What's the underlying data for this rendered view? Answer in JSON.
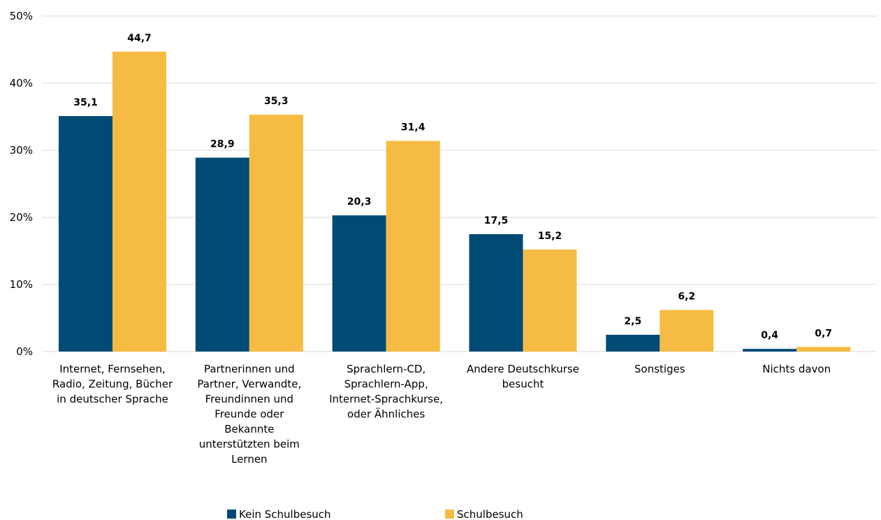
{
  "chart_data": {
    "type": "bar",
    "categories": [
      [
        "Internet, Fernsehen,",
        "Radio, Zeitung, Bücher",
        "in deutscher Sprache"
      ],
      [
        "Partnerinnen und",
        "Partner, Verwandte,",
        "Freundinnen und",
        "Freunde oder",
        "Bekannte",
        "unterstützten beim",
        "Lernen"
      ],
      [
        "Sprachlern-CD,",
        "Sprachlern-App,",
        "Internet-Sprachkurse,",
        "oder Ähnliches"
      ],
      [
        "Andere Deutschkurse",
        "besucht"
      ],
      [
        "Sonstiges"
      ],
      [
        "Nichts davon"
      ]
    ],
    "series": [
      {
        "name": "Kein Schulbesuch",
        "color": "#004b76",
        "values": [
          35.1,
          28.9,
          20.3,
          17.5,
          2.5,
          0.4
        ],
        "labels": [
          "35,1",
          "28,9",
          "20,3",
          "17,5",
          "2,5",
          "0,4"
        ]
      },
      {
        "name": "Schulbesuch",
        "color": "#f6bb42",
        "values": [
          44.7,
          35.3,
          31.4,
          15.2,
          6.2,
          0.7
        ],
        "labels": [
          "44,7",
          "35,3",
          "31,4",
          "15,2",
          "6,2",
          "0,7"
        ]
      }
    ],
    "y_ticks": [
      0,
      10,
      20,
      30,
      40,
      50
    ],
    "y_tick_labels": [
      "0%",
      "10%",
      "20%",
      "30%",
      "40%",
      "50%"
    ],
    "ylim": [
      0,
      50
    ],
    "grid": true,
    "legend_position": "bottom",
    "gridline_color": "#d9d9d9"
  }
}
